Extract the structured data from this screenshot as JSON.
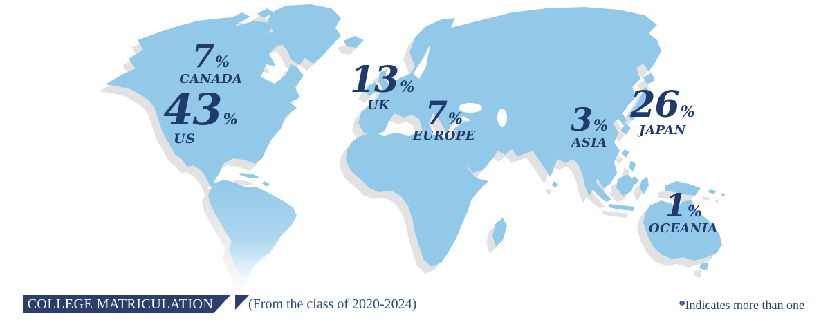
{
  "map": {
    "regions": [
      {
        "id": "canada",
        "value": "7",
        "unit": "%",
        "label": "CANADA"
      },
      {
        "id": "us",
        "value": "43",
        "unit": "%",
        "label": "US"
      },
      {
        "id": "uk",
        "value": "13",
        "unit": "%",
        "label": "UK"
      },
      {
        "id": "europe",
        "value": "7",
        "unit": "%",
        "label": "EUROPE"
      },
      {
        "id": "asia",
        "value": "3",
        "unit": "%",
        "label": "ASIA"
      },
      {
        "id": "japan",
        "value": "26",
        "unit": "%",
        "label": "JAPAN"
      },
      {
        "id": "oceania",
        "value": "1",
        "unit": "%",
        "label": "OCEANIA"
      }
    ],
    "colors": {
      "land": "#92c9e8",
      "shadow": "#e2e2e2",
      "label_text": "#1f3a6b"
    }
  },
  "footer": {
    "banner_label": "COLLEGE MATRICULATION",
    "banner_color": "#2b3f6c",
    "caption": "(From the class of 2020-2024)",
    "footnote_marker": "*",
    "footnote_text": "Indicates more than one"
  },
  "chart_data": {
    "type": "map",
    "title": "COLLEGE MATRICULATION",
    "subtitle": "(From the class of 2020-2024)",
    "note": "*Indicates more than one",
    "categories": [
      "CANADA",
      "US",
      "UK",
      "EUROPE",
      "ASIA",
      "JAPAN",
      "OCEANIA"
    ],
    "values": [
      7,
      43,
      13,
      7,
      3,
      26,
      1
    ],
    "unit": "%",
    "legend_position": "none",
    "description": "World map infographic showing college matriculation share by world region"
  }
}
